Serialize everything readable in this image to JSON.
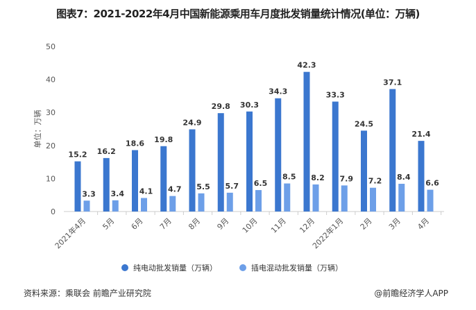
{
  "title": "图表7：2021-2022年4月中国新能源乘用车月度批发销量统计情况(单位：万辆)",
  "footer": {
    "source": "资料来源：乘联会 前瞻产业研究院",
    "credit": "@前瞻经济学人APP"
  },
  "colors": {
    "bev": "#3b77cf",
    "phev": "#6d9fe8"
  },
  "chart_data": {
    "type": "bar",
    "title": "图表7：2021-2022年4月中国新能源乘用车月度批发销量统计情况(单位：万辆)",
    "ylabel": "单位：万辆",
    "xlabel": "",
    "ylim": [
      0,
      50
    ],
    "yticks": [
      0,
      10,
      20,
      30,
      40,
      50
    ],
    "grid": false,
    "legend": "bottom",
    "categories": [
      "2021年4月",
      "5月",
      "6月",
      "7月",
      "8月",
      "9月",
      "10月",
      "11月",
      "12月",
      "2022年1月",
      "2月",
      "3月",
      "4月"
    ],
    "series": [
      {
        "name": "纯电动批发销量（万辆）",
        "values": [
          15.2,
          16.2,
          18.6,
          19.8,
          24.9,
          29.8,
          30.3,
          34.3,
          42.3,
          33.3,
          24.5,
          37.1,
          21.4
        ]
      },
      {
        "name": "插电混动批发销量（万辆）",
        "values": [
          3.3,
          3.4,
          4.1,
          4.7,
          5.5,
          5.7,
          6.5,
          8.5,
          8.2,
          7.9,
          7.2,
          8.4,
          6.6
        ]
      }
    ]
  }
}
